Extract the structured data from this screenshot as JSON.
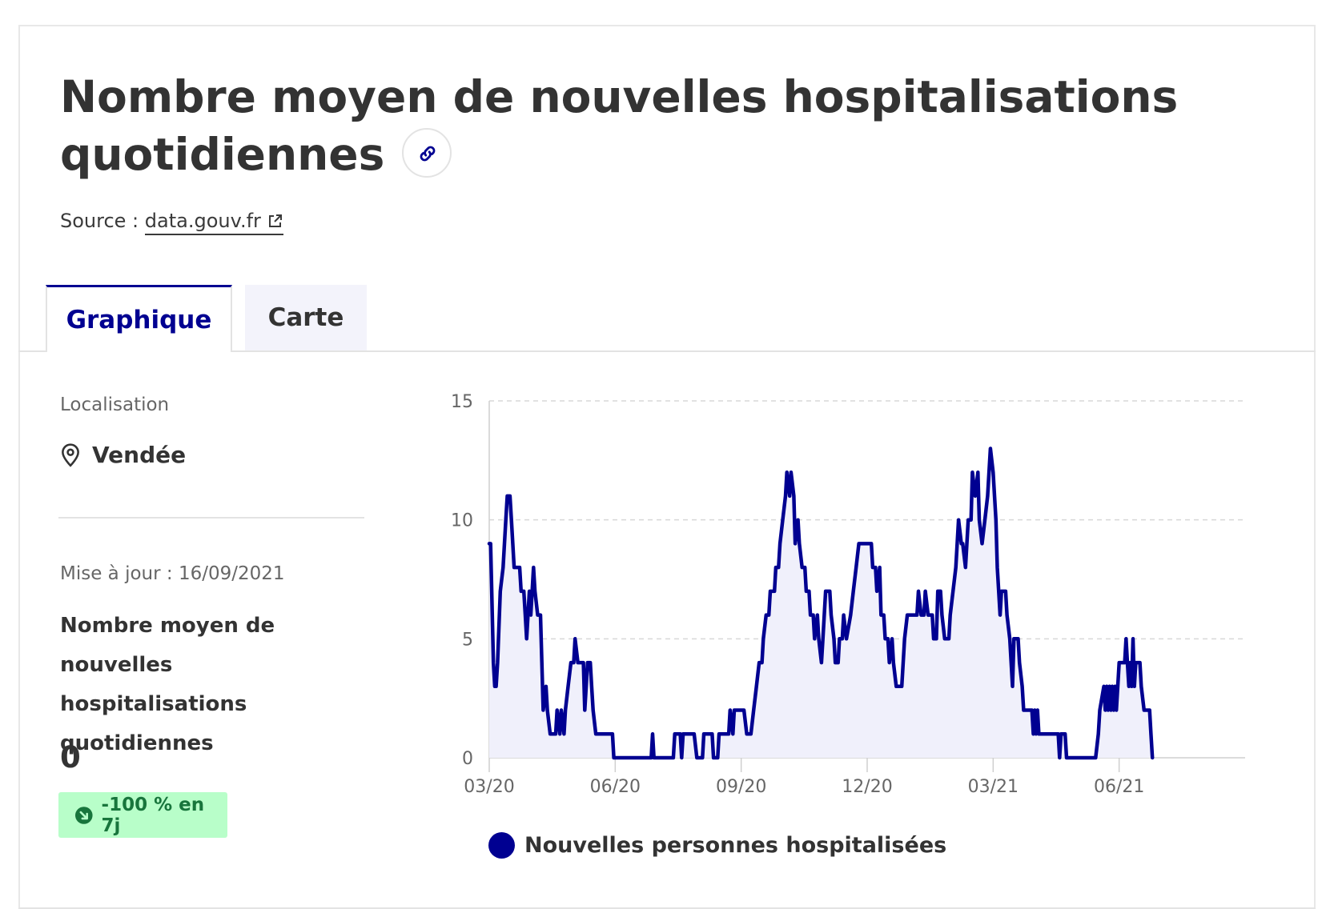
{
  "header": {
    "title": "Nombre moyen de nouvelles hospitalisations quotidiennes",
    "source_prefix": "Source : ",
    "source_link": "data.gouv.fr"
  },
  "tabs": [
    {
      "label": "Graphique",
      "active": true
    },
    {
      "label": "Carte",
      "active": false
    }
  ],
  "sidebar": {
    "location_label": "Localisation",
    "location_value": "Vendée",
    "updated": "Mise à jour : 16/09/2021",
    "kpi_label": "Nombre moyen de nouvelles hospitalisations quotidiennes",
    "kpi_value": "0",
    "badge": "-100 % en 7j"
  },
  "colors": {
    "accent": "#000091",
    "badge_bg": "#b8fec9",
    "badge_text": "#18753c",
    "area_fill": "#f0f0fb"
  },
  "chart_data": {
    "type": "line",
    "series": [
      {
        "name": "Nouvelles personnes hospitalisées"
      }
    ],
    "x_start": "2020-03-19",
    "x_end": "2021-09-16",
    "xticks": [
      {
        "date": "2020-03-19",
        "label": "03/20"
      },
      {
        "date": "2020-06-18",
        "label": "06/20"
      },
      {
        "date": "2020-09-17",
        "label": "09/20"
      },
      {
        "date": "2020-12-17",
        "label": "12/20"
      },
      {
        "date": "2021-03-18",
        "label": "03/21"
      },
      {
        "date": "2021-06-17",
        "label": "06/21"
      }
    ],
    "ylim": [
      0,
      15
    ],
    "yticks": [
      0,
      5,
      10,
      15
    ],
    "grid": "horizontal dashed",
    "legend": "bottom",
    "points": [
      [
        "2020-03-19",
        9
      ],
      [
        "2020-03-20",
        9
      ],
      [
        "2020-03-22",
        4
      ],
      [
        "2020-03-23",
        3
      ],
      [
        "2020-03-24",
        3
      ],
      [
        "2020-03-25",
        4
      ],
      [
        "2020-03-27",
        7
      ],
      [
        "2020-03-29",
        8
      ],
      [
        "2020-03-31",
        10
      ],
      [
        "2020-04-01",
        11
      ],
      [
        "2020-04-03",
        11
      ],
      [
        "2020-04-04",
        10
      ],
      [
        "2020-04-06",
        8
      ],
      [
        "2020-04-10",
        8
      ],
      [
        "2020-04-11",
        7
      ],
      [
        "2020-04-13",
        7
      ],
      [
        "2020-04-14",
        6
      ],
      [
        "2020-04-15",
        5
      ],
      [
        "2020-04-17",
        7
      ],
      [
        "2020-04-18",
        6
      ],
      [
        "2020-04-20",
        8
      ],
      [
        "2020-04-21",
        7
      ],
      [
        "2020-04-23",
        6
      ],
      [
        "2020-04-25",
        6
      ],
      [
        "2020-04-26",
        4
      ],
      [
        "2020-04-27",
        2
      ],
      [
        "2020-04-29",
        3
      ],
      [
        "2020-04-30",
        2
      ],
      [
        "2020-05-02",
        1
      ],
      [
        "2020-05-06",
        1
      ],
      [
        "2020-05-07",
        2
      ],
      [
        "2020-05-09",
        1
      ],
      [
        "2020-05-10",
        2
      ],
      [
        "2020-05-12",
        1
      ],
      [
        "2020-05-13",
        2
      ],
      [
        "2020-05-15",
        3
      ],
      [
        "2020-05-17",
        4
      ],
      [
        "2020-05-19",
        4
      ],
      [
        "2020-05-20",
        5
      ],
      [
        "2020-05-22",
        4
      ],
      [
        "2020-05-26",
        4
      ],
      [
        "2020-05-27",
        2
      ],
      [
        "2020-05-29",
        4
      ],
      [
        "2020-05-31",
        4
      ],
      [
        "2020-06-01",
        3
      ],
      [
        "2020-06-02",
        2
      ],
      [
        "2020-06-04",
        1
      ],
      [
        "2020-06-16",
        1
      ],
      [
        "2020-06-17",
        0
      ],
      [
        "2020-07-14",
        0
      ],
      [
        "2020-07-15",
        1
      ],
      [
        "2020-07-16",
        0
      ],
      [
        "2020-07-30",
        0
      ],
      [
        "2020-07-31",
        1
      ],
      [
        "2020-08-04",
        1
      ],
      [
        "2020-08-05",
        0
      ],
      [
        "2020-08-06",
        1
      ],
      [
        "2020-08-14",
        1
      ],
      [
        "2020-08-16",
        0
      ],
      [
        "2020-08-20",
        0
      ],
      [
        "2020-08-21",
        1
      ],
      [
        "2020-08-27",
        1
      ],
      [
        "2020-08-28",
        0
      ],
      [
        "2020-08-31",
        0
      ],
      [
        "2020-09-01",
        1
      ],
      [
        "2020-09-08",
        1
      ],
      [
        "2020-09-09",
        2
      ],
      [
        "2020-09-11",
        1
      ],
      [
        "2020-09-12",
        2
      ],
      [
        "2020-09-19",
        2
      ],
      [
        "2020-09-21",
        1
      ],
      [
        "2020-09-24",
        1
      ],
      [
        "2020-09-26",
        2
      ],
      [
        "2020-09-28",
        3
      ],
      [
        "2020-09-30",
        4
      ],
      [
        "2020-10-02",
        4
      ],
      [
        "2020-10-03",
        5
      ],
      [
        "2020-10-05",
        6
      ],
      [
        "2020-10-07",
        6
      ],
      [
        "2020-10-08",
        7
      ],
      [
        "2020-10-11",
        7
      ],
      [
        "2020-10-12",
        8
      ],
      [
        "2020-10-14",
        8
      ],
      [
        "2020-10-15",
        9
      ],
      [
        "2020-10-17",
        10
      ],
      [
        "2020-10-19",
        11
      ],
      [
        "2020-10-20",
        12
      ],
      [
        "2020-10-22",
        11
      ],
      [
        "2020-10-23",
        12
      ],
      [
        "2020-10-25",
        11
      ],
      [
        "2020-10-26",
        9
      ],
      [
        "2020-10-28",
        10
      ],
      [
        "2020-10-29",
        9
      ],
      [
        "2020-10-31",
        8
      ],
      [
        "2020-11-02",
        8
      ],
      [
        "2020-11-03",
        7
      ],
      [
        "2020-11-05",
        7
      ],
      [
        "2020-11-06",
        6
      ],
      [
        "2020-11-08",
        6
      ],
      [
        "2020-11-09",
        5
      ],
      [
        "2020-11-11",
        6
      ],
      [
        "2020-11-12",
        5
      ],
      [
        "2020-11-14",
        4
      ],
      [
        "2020-11-15",
        5
      ],
      [
        "2020-11-17",
        7
      ],
      [
        "2020-11-20",
        7
      ],
      [
        "2020-11-21",
        6
      ],
      [
        "2020-11-23",
        5
      ],
      [
        "2020-11-24",
        4
      ],
      [
        "2020-11-26",
        4
      ],
      [
        "2020-11-27",
        5
      ],
      [
        "2020-11-29",
        5
      ],
      [
        "2020-11-30",
        6
      ],
      [
        "2020-12-02",
        5
      ],
      [
        "2020-12-05",
        6
      ],
      [
        "2020-12-07",
        7
      ],
      [
        "2020-12-09",
        8
      ],
      [
        "2020-12-11",
        9
      ],
      [
        "2020-12-20",
        9
      ],
      [
        "2020-12-21",
        8
      ],
      [
        "2020-12-23",
        8
      ],
      [
        "2020-12-24",
        7
      ],
      [
        "2020-12-26",
        8
      ],
      [
        "2020-12-27",
        6
      ],
      [
        "2020-12-29",
        6
      ],
      [
        "2020-12-30",
        5
      ],
      [
        "2021-01-01",
        5
      ],
      [
        "2021-01-02",
        4
      ],
      [
        "2021-01-04",
        5
      ],
      [
        "2021-01-05",
        4
      ],
      [
        "2021-01-07",
        3
      ],
      [
        "2021-01-11",
        3
      ],
      [
        "2021-01-13",
        5
      ],
      [
        "2021-01-15",
        6
      ],
      [
        "2021-01-22",
        6
      ],
      [
        "2021-01-23",
        7
      ],
      [
        "2021-01-25",
        6
      ],
      [
        "2021-01-27",
        6
      ],
      [
        "2021-01-28",
        7
      ],
      [
        "2021-01-30",
        6
      ],
      [
        "2021-02-02",
        6
      ],
      [
        "2021-02-03",
        5
      ],
      [
        "2021-02-05",
        5
      ],
      [
        "2021-02-06",
        7
      ],
      [
        "2021-02-08",
        7
      ],
      [
        "2021-02-09",
        6
      ],
      [
        "2021-02-11",
        5
      ],
      [
        "2021-02-14",
        5
      ],
      [
        "2021-02-15",
        6
      ],
      [
        "2021-02-17",
        7
      ],
      [
        "2021-02-19",
        8
      ],
      [
        "2021-02-21",
        10
      ],
      [
        "2021-02-23",
        9
      ],
      [
        "2021-02-24",
        9
      ],
      [
        "2021-02-26",
        8
      ],
      [
        "2021-02-28",
        10
      ],
      [
        "2021-03-02",
        10
      ],
      [
        "2021-03-03",
        12
      ],
      [
        "2021-03-05",
        11
      ],
      [
        "2021-03-07",
        12
      ],
      [
        "2021-03-08",
        10
      ],
      [
        "2021-03-10",
        9
      ],
      [
        "2021-03-12",
        10
      ],
      [
        "2021-03-14",
        11
      ],
      [
        "2021-03-16",
        13
      ],
      [
        "2021-03-18",
        12
      ],
      [
        "2021-03-20",
        10
      ],
      [
        "2021-03-21",
        8
      ],
      [
        "2021-03-23",
        6
      ],
      [
        "2021-03-24",
        7
      ],
      [
        "2021-03-27",
        7
      ],
      [
        "2021-03-28",
        6
      ],
      [
        "2021-03-30",
        5
      ],
      [
        "2021-04-01",
        3
      ],
      [
        "2021-04-02",
        5
      ],
      [
        "2021-04-05",
        5
      ],
      [
        "2021-04-06",
        4
      ],
      [
        "2021-04-08",
        3
      ],
      [
        "2021-04-09",
        2
      ],
      [
        "2021-04-15",
        2
      ],
      [
        "2021-04-16",
        1
      ],
      [
        "2021-04-17",
        2
      ],
      [
        "2021-04-18",
        1
      ],
      [
        "2021-04-19",
        2
      ],
      [
        "2021-04-20",
        1
      ],
      [
        "2021-05-04",
        1
      ],
      [
        "2021-05-05",
        0
      ],
      [
        "2021-05-06",
        1
      ],
      [
        "2021-05-09",
        1
      ],
      [
        "2021-05-10",
        0
      ],
      [
        "2021-05-31",
        0
      ],
      [
        "2021-06-02",
        1
      ],
      [
        "2021-06-03",
        2
      ],
      [
        "2021-06-06",
        3
      ],
      [
        "2021-06-07",
        2
      ],
      [
        "2021-06-08",
        3
      ],
      [
        "2021-06-09",
        2
      ],
      [
        "2021-06-10",
        3
      ],
      [
        "2021-06-11",
        2
      ],
      [
        "2021-06-12",
        3
      ],
      [
        "2021-06-13",
        2
      ],
      [
        "2021-06-14",
        3
      ],
      [
        "2021-06-15",
        2
      ],
      [
        "2021-06-17",
        4
      ],
      [
        "2021-06-21",
        4
      ],
      [
        "2021-06-22",
        5
      ],
      [
        "2021-06-23",
        4
      ],
      [
        "2021-06-24",
        3
      ],
      [
        "2021-06-25",
        4
      ],
      [
        "2021-06-26",
        3
      ],
      [
        "2021-06-27",
        5
      ],
      [
        "2021-06-28",
        3
      ],
      [
        "2021-06-29",
        4
      ],
      [
        "2021-07-02",
        4
      ],
      [
        "2021-07-03",
        3
      ],
      [
        "2021-07-05",
        2
      ],
      [
        "2021-07-09",
        2
      ],
      [
        "2021-07-10",
        1
      ],
      [
        "2021-07-11",
        0
      ]
    ]
  }
}
